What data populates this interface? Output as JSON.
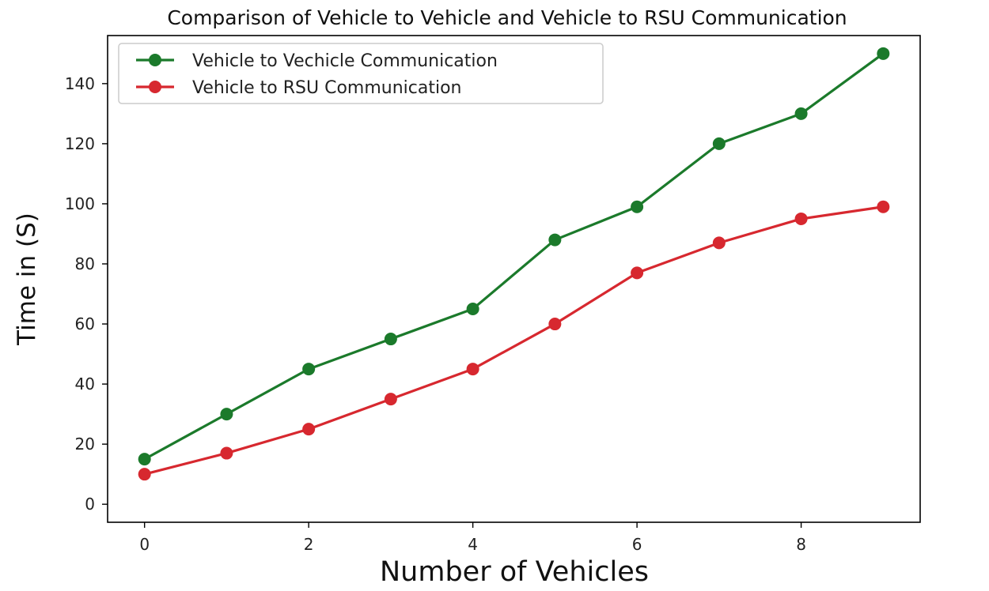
{
  "chart_data": {
    "type": "line",
    "title": "Comparison of Vehicle to Vehicle and Vehicle to RSU Communication",
    "xlabel": "Number of Vehicles",
    "ylabel": "Time in (S)",
    "x": [
      0,
      1,
      2,
      3,
      4,
      5,
      6,
      7,
      8,
      9
    ],
    "xlim": [
      -0.45,
      9.45
    ],
    "ylim": [
      -6,
      156
    ],
    "xticks": [
      0,
      2,
      4,
      6,
      8
    ],
    "yticks": [
      0,
      20,
      40,
      60,
      80,
      100,
      120,
      140
    ],
    "grid": false,
    "legend_position": "top-left",
    "series": [
      {
        "name": "Vehicle to Vechicle Communication",
        "color": "#1b7a2b",
        "values": [
          15,
          30,
          45,
          55,
          65,
          88,
          99,
          120,
          130,
          150
        ]
      },
      {
        "name": "Vehicle to RSU Communication",
        "color": "#d7282f",
        "values": [
          10,
          17,
          25,
          35,
          45,
          60,
          77,
          87,
          95,
          99
        ]
      }
    ]
  }
}
